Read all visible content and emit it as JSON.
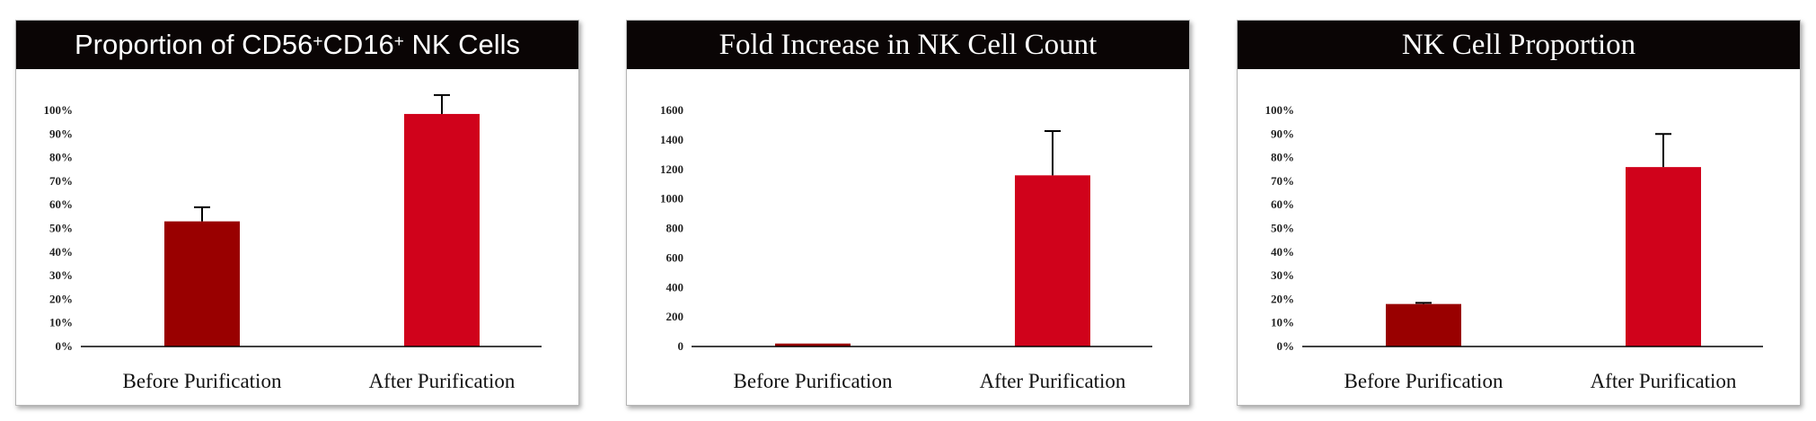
{
  "charts": [
    {
      "header": {
        "prefix": "Proportion of CD56",
        "sup1": "+",
        "mid": "CD16",
        "sup2": "+",
        "suffix": " NK Cells"
      }
    },
    {
      "header": {
        "text": "Fold Increase in NK Cell Count"
      }
    },
    {
      "header": {
        "text": "NK Cell Proportion"
      }
    }
  ],
  "colors": {
    "before_bar": "#990000",
    "after_bar": "#d0021b",
    "header_bg": "#0a0505"
  },
  "chart_data": [
    {
      "type": "bar",
      "title": "Proportion of CD56+CD16+ NK Cells",
      "categories": [
        "Before Purification",
        "After Purification"
      ],
      "values": [
        0.53,
        0.985
      ],
      "errors": [
        0.06,
        0.08
      ],
      "yticks": [
        "0%",
        "10%",
        "20%",
        "30%",
        "40%",
        "50%",
        "60%",
        "70%",
        "80%",
        "90%",
        "100%"
      ],
      "ylim": [
        0,
        1.0
      ],
      "bar_colors": [
        "#990000",
        "#d0021b"
      ],
      "grid": false
    },
    {
      "type": "bar",
      "title": "Fold Increase in NK Cell Count",
      "categories": [
        "Before Purification",
        "After Purification"
      ],
      "values": [
        20,
        1160
      ],
      "errors": [
        0,
        300
      ],
      "yticks": [
        "0",
        "200",
        "400",
        "600",
        "800",
        "1000",
        "1200",
        "1400",
        "1600"
      ],
      "ylim": [
        0,
        1600
      ],
      "bar_colors": [
        "#990000",
        "#d0021b"
      ],
      "grid": false
    },
    {
      "type": "bar",
      "title": "NK Cell Proportion",
      "categories": [
        "Before Purification",
        "After Purification"
      ],
      "values": [
        0.18,
        0.76
      ],
      "errors": [
        0.005,
        0.14
      ],
      "yticks": [
        "0%",
        "10%",
        "20%",
        "30%",
        "40%",
        "50%",
        "60%",
        "70%",
        "80%",
        "90%",
        "100%"
      ],
      "ylim": [
        0,
        1.0
      ],
      "bar_colors": [
        "#990000",
        "#d0021b"
      ],
      "grid": false
    }
  ]
}
